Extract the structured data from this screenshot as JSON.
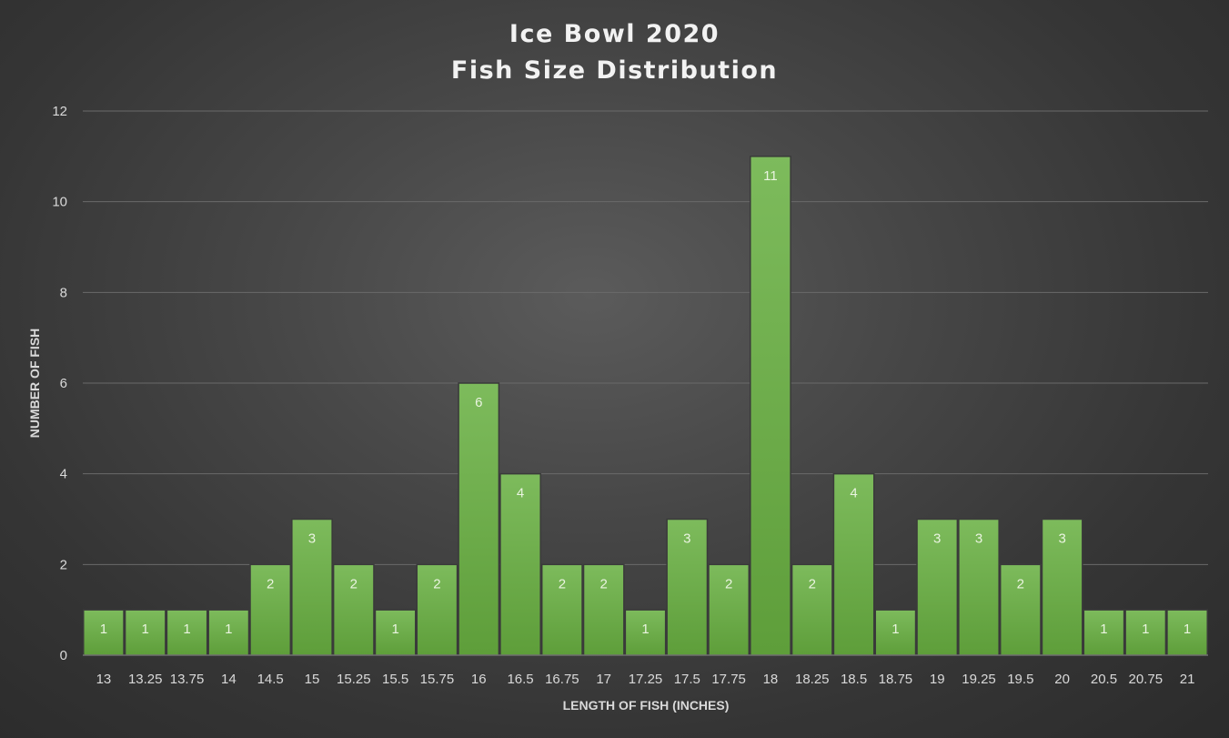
{
  "chart_data": {
    "type": "bar",
    "title_lines": [
      "Ice Bowl 2020",
      "Fish Size Distribution"
    ],
    "xlabel": "LENGTH OF FISH (INCHES)",
    "ylabel": "NUMBER OF FISH",
    "categories": [
      "13",
      "13.25",
      "13.75",
      "14",
      "14.5",
      "15",
      "15.25",
      "15.5",
      "15.75",
      "16",
      "16.5",
      "16.75",
      "17",
      "17.25",
      "17.5",
      "17.75",
      "18",
      "18.25",
      "18.5",
      "18.75",
      "19",
      "19.25",
      "19.5",
      "20",
      "20.5",
      "20.75",
      "21"
    ],
    "values": [
      1,
      1,
      1,
      1,
      2,
      3,
      2,
      1,
      2,
      6,
      4,
      2,
      2,
      1,
      3,
      2,
      11,
      2,
      4,
      1,
      3,
      3,
      2,
      3,
      1,
      1,
      1
    ],
    "ylim": [
      0,
      12
    ],
    "yticks": [
      "0",
      "2",
      "4",
      "6",
      "8",
      "10",
      "12"
    ],
    "grid": true,
    "legend": "none",
    "data_labels": true,
    "colors": {
      "bar_top": "#7dbb5c",
      "bar_bottom": "#5e9e3a",
      "bar_border": "#3a3a3a"
    }
  }
}
